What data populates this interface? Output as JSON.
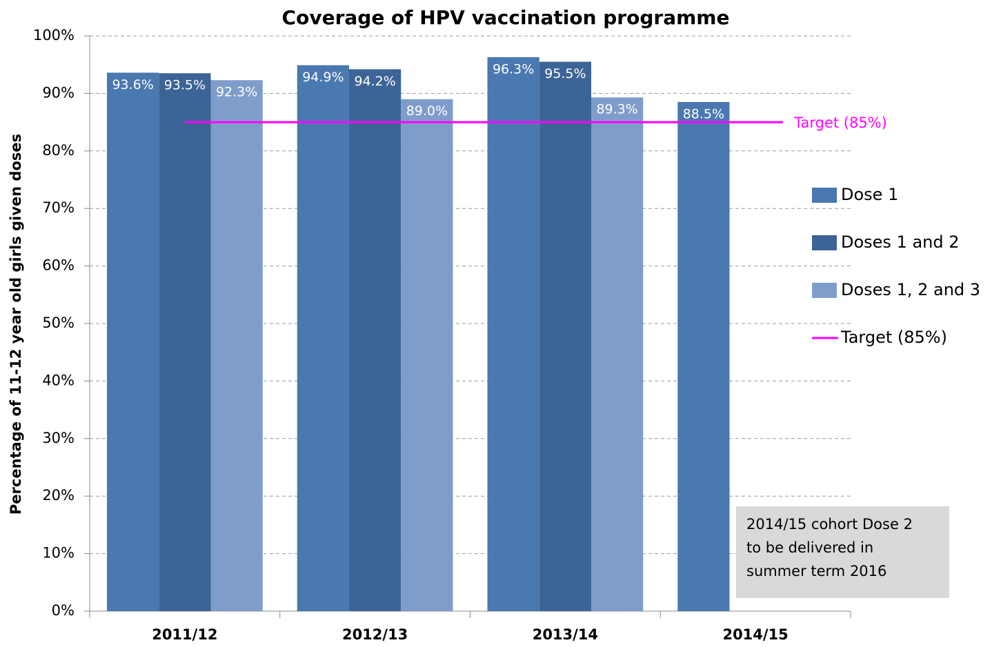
{
  "chart_data": {
    "type": "bar",
    "title": "Coverage of HPV vaccination programme",
    "y_label": "Percentage of 11-12 year old girls given doses",
    "categories": [
      "2011/12",
      "2012/13",
      "2013/14",
      "2014/15"
    ],
    "series": [
      {
        "name": "Dose 1",
        "color": "#4a78b0",
        "values": [
          93.6,
          94.9,
          96.3,
          88.5
        ],
        "value_labels": [
          "93.6%",
          "94.9%",
          "96.3%",
          "88.5%"
        ]
      },
      {
        "name": "Doses 1 and 2",
        "color": "#3d6496",
        "values": [
          93.5,
          94.2,
          95.5,
          null
        ],
        "value_labels": [
          "93.5%",
          "94.2%",
          "95.5%",
          null
        ]
      },
      {
        "name": "Doses 1, 2 and 3",
        "color": "#7f9dca",
        "values": [
          92.3,
          89.0,
          89.3,
          null
        ],
        "value_labels": [
          "92.3%",
          "89.0%",
          "89.3%",
          null
        ]
      }
    ],
    "target": {
      "name": "Target (85%)",
      "value": 85,
      "color": "#ff00ff"
    },
    "ylim": [
      0,
      100
    ],
    "yticks": [
      {
        "value": 0,
        "label": "0%"
      },
      {
        "value": 10,
        "label": "10%"
      },
      {
        "value": 20,
        "label": "20%"
      },
      {
        "value": 30,
        "label": "30%"
      },
      {
        "value": 40,
        "label": "40%"
      },
      {
        "value": 50,
        "label": "50%"
      },
      {
        "value": 60,
        "label": "60%"
      },
      {
        "value": 70,
        "label": "70%"
      },
      {
        "value": 80,
        "label": "80%"
      },
      {
        "value": 90,
        "label": "90%"
      },
      {
        "value": 100,
        "label": "100%"
      }
    ],
    "grid": true,
    "legend": "right",
    "note": [
      "2014/15 cohort Dose 2",
      "to be delivered in",
      "summer term 2016"
    ]
  }
}
